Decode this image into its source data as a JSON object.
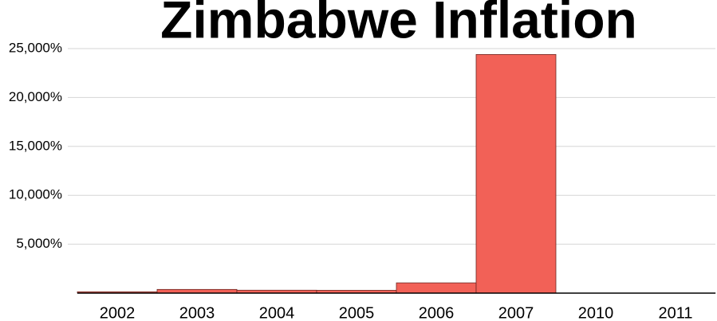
{
  "chart_data": {
    "type": "bar",
    "title": "Zimbabwe Inflation",
    "categories": [
      "2002",
      "2003",
      "2004",
      "2005",
      "2006",
      "2007",
      "2010",
      "2011"
    ],
    "values": [
      140,
      380,
      300,
      290,
      1050,
      24400,
      3,
      5
    ],
    "color": "#f26157",
    "ylim": [
      0,
      25000
    ],
    "yticks": [
      {
        "value": 5000,
        "label": "5,000%"
      },
      {
        "value": 10000,
        "label": "10,000%"
      },
      {
        "value": 15000,
        "label": "15,000%"
      },
      {
        "value": 20000,
        "label": "20,000%"
      },
      {
        "value": 25000,
        "label": "25,000%"
      }
    ],
    "grid": true
  }
}
